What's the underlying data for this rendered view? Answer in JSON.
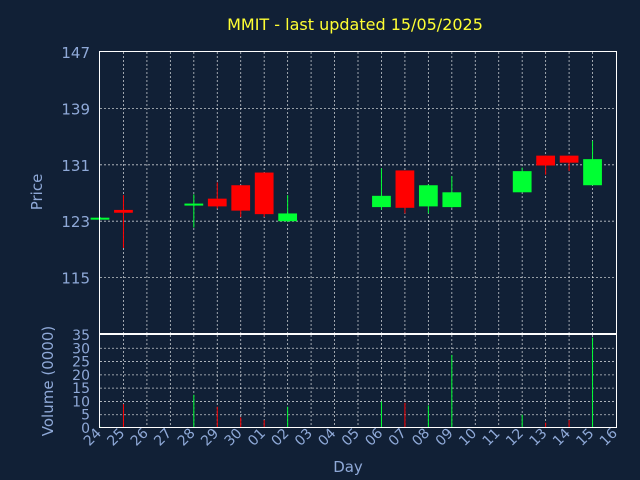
{
  "chart_data": {
    "type": "candlestick",
    "title": "MMIT - last updated 15/05/2025",
    "xlabel": "Day",
    "price_panel": {
      "ylabel": "Price",
      "ylim": [
        107,
        147
      ],
      "yticks": [
        115,
        123,
        131,
        139,
        147
      ],
      "grid": true
    },
    "volume_panel": {
      "ylabel": "Volume (0000)",
      "ylim": [
        0,
        35
      ],
      "yticks": [
        0,
        5,
        10,
        15,
        20,
        25,
        30,
        35
      ],
      "grid": true
    },
    "x_tick_labels": [
      "24",
      "25",
      "26",
      "27",
      "28",
      "29",
      "30",
      "01",
      "02",
      "03",
      "04",
      "05",
      "06",
      "07",
      "08",
      "09",
      "10",
      "11",
      "12",
      "13",
      "14",
      "15",
      "16"
    ],
    "up_color": "#00ff33",
    "down_color": "#ff0000",
    "candles": [
      {
        "x": 0,
        "open": 123.5,
        "high": 123.6,
        "low": 123.3,
        "close": 123.5,
        "volume": 0.5
      },
      {
        "x": 1,
        "open": 124.6,
        "high": 126.7,
        "low": 119.2,
        "close": 124.2,
        "volume": 9.0
      },
      {
        "x": 4,
        "open": 125.3,
        "high": 126.8,
        "low": 122.1,
        "close": 125.5,
        "volume": 12.5
      },
      {
        "x": 5,
        "open": 126.2,
        "high": 128.5,
        "low": 124.8,
        "close": 125.1,
        "volume": 8.0
      },
      {
        "x": 6,
        "open": 128.1,
        "high": 128.1,
        "low": 123.6,
        "close": 124.5,
        "volume": 4.0
      },
      {
        "x": 7,
        "open": 129.9,
        "high": 129.9,
        "low": 123.6,
        "close": 124.0,
        "volume": 3.0
      },
      {
        "x": 8,
        "open": 123.0,
        "high": 126.7,
        "low": 122.9,
        "close": 124.1,
        "volume": 8.0
      },
      {
        "x": 12,
        "open": 125.0,
        "high": 130.5,
        "low": 124.6,
        "close": 126.6,
        "volume": 10.0
      },
      {
        "x": 13,
        "open": 130.2,
        "high": 130.2,
        "low": 124.1,
        "close": 124.9,
        "volume": 9.5
      },
      {
        "x": 14,
        "open": 125.1,
        "high": 128.2,
        "low": 124.1,
        "close": 128.1,
        "volume": 8.5
      },
      {
        "x": 15,
        "open": 125.0,
        "high": 129.4,
        "low": 124.9,
        "close": 127.1,
        "volume": 27.5
      },
      {
        "x": 18,
        "open": 127.1,
        "high": 130.6,
        "low": 127.1,
        "close": 130.1,
        "volume": 5.0
      },
      {
        "x": 19,
        "open": 132.3,
        "high": 132.3,
        "low": 129.6,
        "close": 130.9,
        "volume": 2.0
      },
      {
        "x": 20,
        "open": 132.3,
        "high": 132.3,
        "low": 130.1,
        "close": 131.3,
        "volume": 3.0
      },
      {
        "x": 21,
        "open": 128.1,
        "high": 134.4,
        "low": 128.1,
        "close": 131.8,
        "volume": 34.0
      }
    ]
  }
}
